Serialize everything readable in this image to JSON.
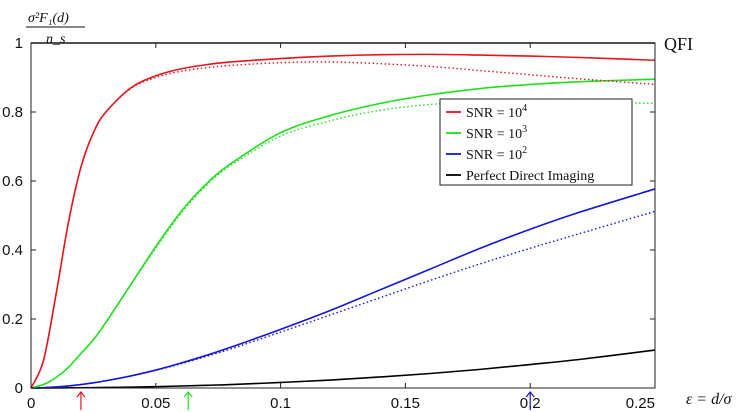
{
  "chart_data": {
    "type": "line",
    "ylabel_numerator": "σ²F₁(d)",
    "ylabel_denominator": "n_s",
    "xlabel": "ε = d/σ",
    "xlim": [
      0,
      0.25
    ],
    "ylim": [
      0,
      1
    ],
    "xticks": [
      "0",
      "0.05",
      "0.1",
      "0.15",
      "0.2",
      "0.25"
    ],
    "yticks": [
      "0",
      "0.2",
      "0.4",
      "0.6",
      "0.8",
      "1"
    ],
    "grid": false,
    "legend_position": "center-right",
    "x": [
      0,
      0.005,
      0.01,
      0.015,
      0.02,
      0.025,
      0.03,
      0.04,
      0.05,
      0.06,
      0.07,
      0.08,
      0.1,
      0.12,
      0.14,
      0.16,
      0.18,
      0.2,
      0.22,
      0.25
    ],
    "series": [
      {
        "name": "SNR = 10⁴",
        "color": "#e8141b",
        "style": "solid",
        "values": [
          0,
          0.08,
          0.27,
          0.48,
          0.64,
          0.74,
          0.8,
          0.87,
          0.905,
          0.925,
          0.937,
          0.945,
          0.955,
          0.962,
          0.966,
          0.967,
          0.965,
          0.962,
          0.958,
          0.95
        ]
      },
      {
        "name": "SNR = 10⁴ (dotted)",
        "color": "#e8141b",
        "style": "dotted",
        "values": [
          0,
          0.08,
          0.27,
          0.48,
          0.64,
          0.74,
          0.8,
          0.868,
          0.9,
          0.918,
          0.928,
          0.935,
          0.943,
          0.945,
          0.94,
          0.932,
          0.92,
          0.908,
          0.896,
          0.88
        ]
      },
      {
        "name": "SNR = 10³",
        "color": "#1ee01a",
        "style": "solid",
        "values": [
          0,
          0.01,
          0.03,
          0.06,
          0.1,
          0.14,
          0.19,
          0.3,
          0.41,
          0.51,
          0.59,
          0.65,
          0.74,
          0.79,
          0.825,
          0.85,
          0.868,
          0.88,
          0.888,
          0.895
        ]
      },
      {
        "name": "SNR = 10³ (dotted)",
        "color": "#1ee01a",
        "style": "dotted",
        "values": [
          0,
          0.01,
          0.03,
          0.06,
          0.1,
          0.14,
          0.19,
          0.3,
          0.405,
          0.505,
          0.585,
          0.645,
          0.73,
          0.775,
          0.805,
          0.822,
          0.83,
          0.832,
          0.83,
          0.825
        ]
      },
      {
        "name": "SNR = 10²",
        "color": "#1414e0",
        "style": "solid",
        "values": [
          0,
          0.001,
          0.003,
          0.006,
          0.01,
          0.015,
          0.021,
          0.035,
          0.052,
          0.072,
          0.094,
          0.118,
          0.17,
          0.225,
          0.285,
          0.345,
          0.405,
          0.46,
          0.51,
          0.577
        ]
      },
      {
        "name": "SNR = 10² (dotted)",
        "color": "#1414e0",
        "style": "dotted",
        "values": [
          0,
          0.001,
          0.003,
          0.006,
          0.01,
          0.015,
          0.021,
          0.035,
          0.051,
          0.07,
          0.091,
          0.113,
          0.162,
          0.212,
          0.262,
          0.312,
          0.36,
          0.405,
          0.448,
          0.512
        ]
      },
      {
        "name": "Perfect Direct Imaging",
        "color": "#000000",
        "style": "solid",
        "values": [
          0,
          0,
          0,
          0.0004,
          0.0007,
          0.001,
          0.0015,
          0.0025,
          0.004,
          0.0058,
          0.0078,
          0.01,
          0.016,
          0.023,
          0.032,
          0.042,
          0.054,
          0.068,
          0.083,
          0.11
        ]
      },
      {
        "name": "QFI",
        "color": "#000000",
        "style": "solid",
        "values": [
          1,
          1,
          1,
          1,
          1,
          1,
          1,
          1,
          1,
          1,
          1,
          1,
          1,
          1,
          1,
          1,
          1,
          1,
          1,
          1
        ]
      }
    ],
    "legend": [
      {
        "label": "SNR = 10",
        "sup": "4",
        "color": "#e8141b"
      },
      {
        "label": "SNR = 10",
        "sup": "3",
        "color": "#1ee01a"
      },
      {
        "label": "SNR = 10",
        "sup": "2",
        "color": "#1414e0"
      },
      {
        "label": "Perfect Direct Imaging",
        "sup": "",
        "color": "#000000"
      }
    ],
    "annotations": {
      "qfi_label": "QFI",
      "arrows": [
        {
          "x": 0.02,
          "color": "#e8141b"
        },
        {
          "x": 0.063,
          "color": "#1ee01a"
        },
        {
          "x": 0.2,
          "color": "#1414e0"
        }
      ]
    }
  }
}
